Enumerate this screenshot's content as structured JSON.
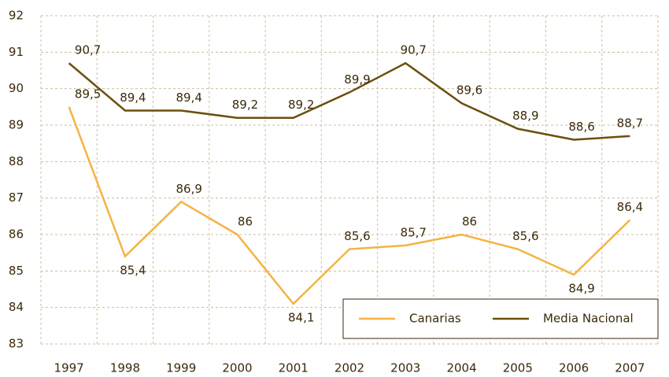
{
  "chart_data": {
    "type": "line",
    "categories": [
      "1997",
      "1998",
      "1999",
      "2000",
      "2001",
      "2002",
      "2003",
      "2004",
      "2005",
      "2006",
      "2007"
    ],
    "series": [
      {
        "name": "Canarias",
        "color": "#f5b342",
        "values": [
          89.5,
          85.4,
          86.9,
          86,
          84.1,
          85.6,
          85.7,
          86,
          85.6,
          84.9,
          86.4
        ],
        "value_labels": [
          "89,5",
          "85,4",
          "86,9",
          "86",
          "84,1",
          "85,6",
          "85,7",
          "86",
          "85,6",
          "84,9",
          "86,4"
        ]
      },
      {
        "name": "Media Nacional",
        "color": "#6b4f0c",
        "values": [
          90.7,
          89.4,
          89.4,
          89.2,
          89.2,
          89.9,
          90.7,
          89.6,
          88.9,
          88.6,
          88.7
        ],
        "value_labels": [
          "90,7",
          "89,4",
          "89,4",
          "89,2",
          "89,2",
          "89,9",
          "90,7",
          "89,6",
          "88,9",
          "88,6",
          "88,7"
        ]
      }
    ],
    "ylim": [
      83,
      92
    ],
    "yticks": [
      83,
      84,
      85,
      86,
      87,
      88,
      89,
      90,
      91,
      92
    ],
    "grid": true,
    "legend": "lower right"
  }
}
